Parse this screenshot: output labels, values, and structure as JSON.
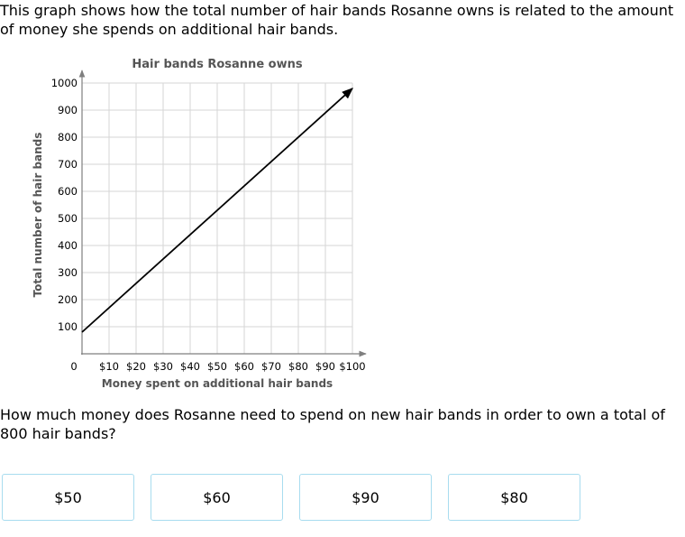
{
  "intro_text": "This graph shows how the total number of hair bands Rosanne owns is related to the amount of money she spends on additional hair bands.",
  "question_text": "How much money does Rosanne need to spend on new hair bands in order to own a total of 800 hair bands?",
  "choices": [
    "$50",
    "$60",
    "$90",
    "$80"
  ],
  "colors": {
    "grid": "#d6d6d6",
    "axis": "#7f7f7f",
    "line": "#000000",
    "choice_border": "#a8dcef",
    "title": "#555555"
  },
  "chart_data": {
    "type": "line",
    "title": "Hair bands Rosanne owns",
    "xlabel": "Money spent on additional hair bands",
    "ylabel": "Total number of hair bands",
    "xlim": [
      0,
      100
    ],
    "ylim": [
      0,
      1000
    ],
    "x_tick_labels": [
      "0",
      "$10",
      "$20",
      "$30",
      "$40",
      "$50",
      "$60",
      "$70",
      "$80",
      "$90",
      "$100"
    ],
    "y_tick_labels": [
      "100",
      "200",
      "300",
      "400",
      "500",
      "600",
      "700",
      "800",
      "900",
      "1000"
    ],
    "grid": true,
    "series": [
      {
        "x": [
          0,
          100
        ],
        "y": [
          80,
          980
        ],
        "arrow_end": true
      }
    ]
  }
}
